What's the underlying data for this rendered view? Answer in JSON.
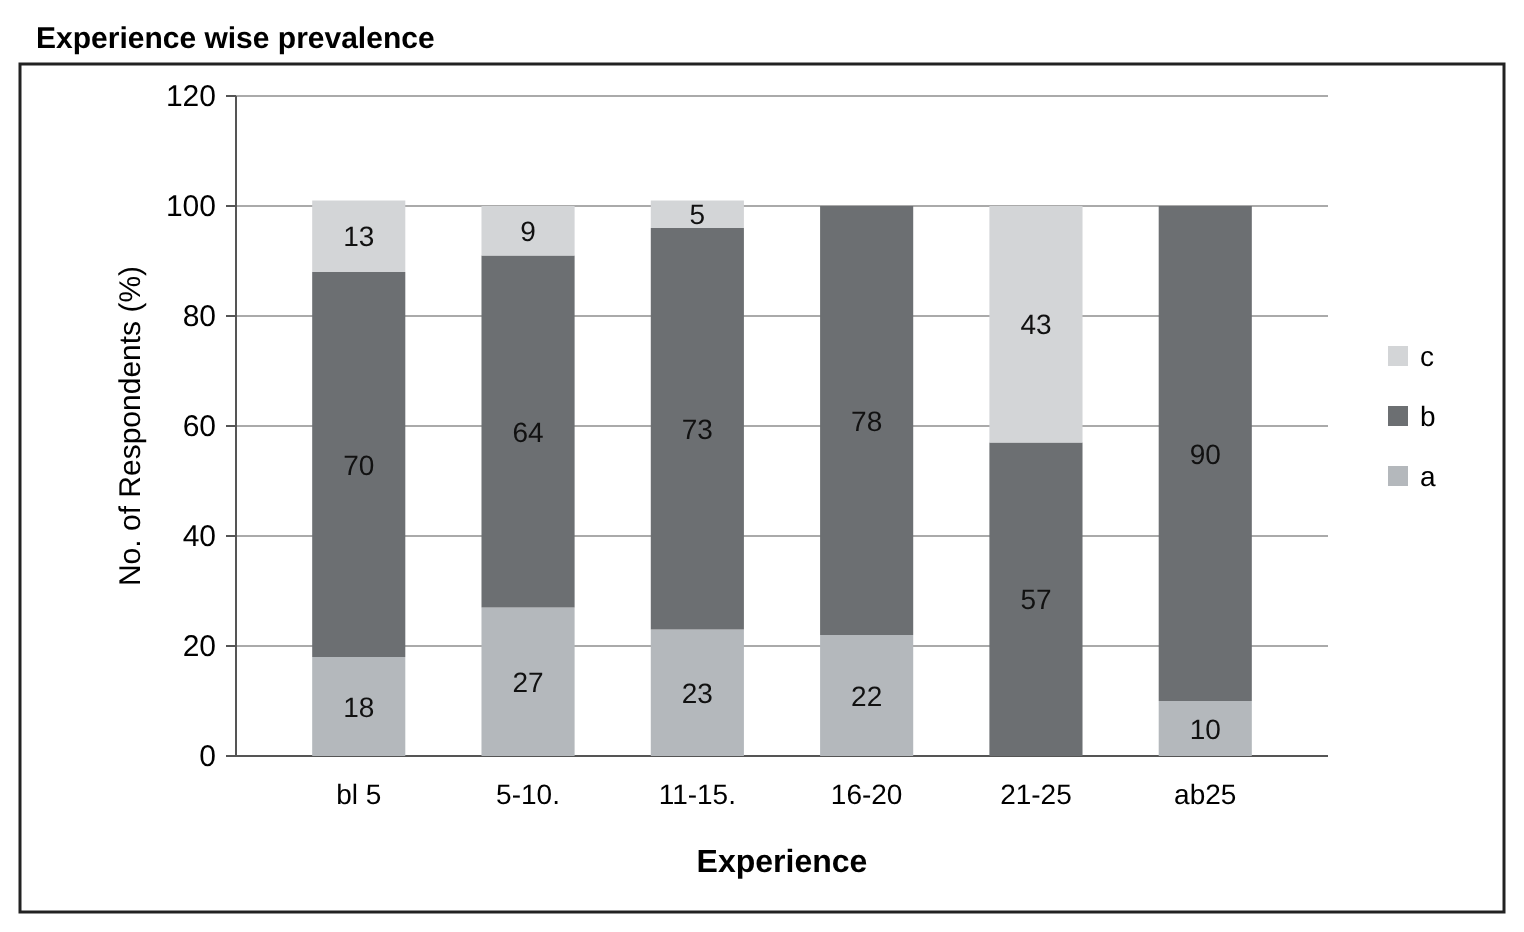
{
  "chart_data": {
    "type": "bar",
    "title": "Experience wise prevalence",
    "xlabel": "Experience",
    "ylabel": "No. of Respondents (%)",
    "categories": [
      "bl 5",
      "5-10.",
      "11-15.",
      "16-20",
      "21-25",
      "ab25"
    ],
    "stacked": true,
    "series": [
      {
        "name": "a",
        "color": "#b4b8bc",
        "values": [
          18,
          27,
          23,
          22,
          null,
          10
        ]
      },
      {
        "name": "b",
        "color": "#6c6f72",
        "values": [
          70,
          64,
          73,
          78,
          57,
          90
        ]
      },
      {
        "name": "c",
        "color": "#d3d5d7",
        "values": [
          13,
          9,
          5,
          null,
          43,
          null
        ]
      }
    ],
    "ylim": [
      0,
      120
    ],
    "yticks": [
      0,
      20,
      40,
      60,
      80,
      100,
      120
    ],
    "grid": "y",
    "legend": "right",
    "data_labels": true
  }
}
